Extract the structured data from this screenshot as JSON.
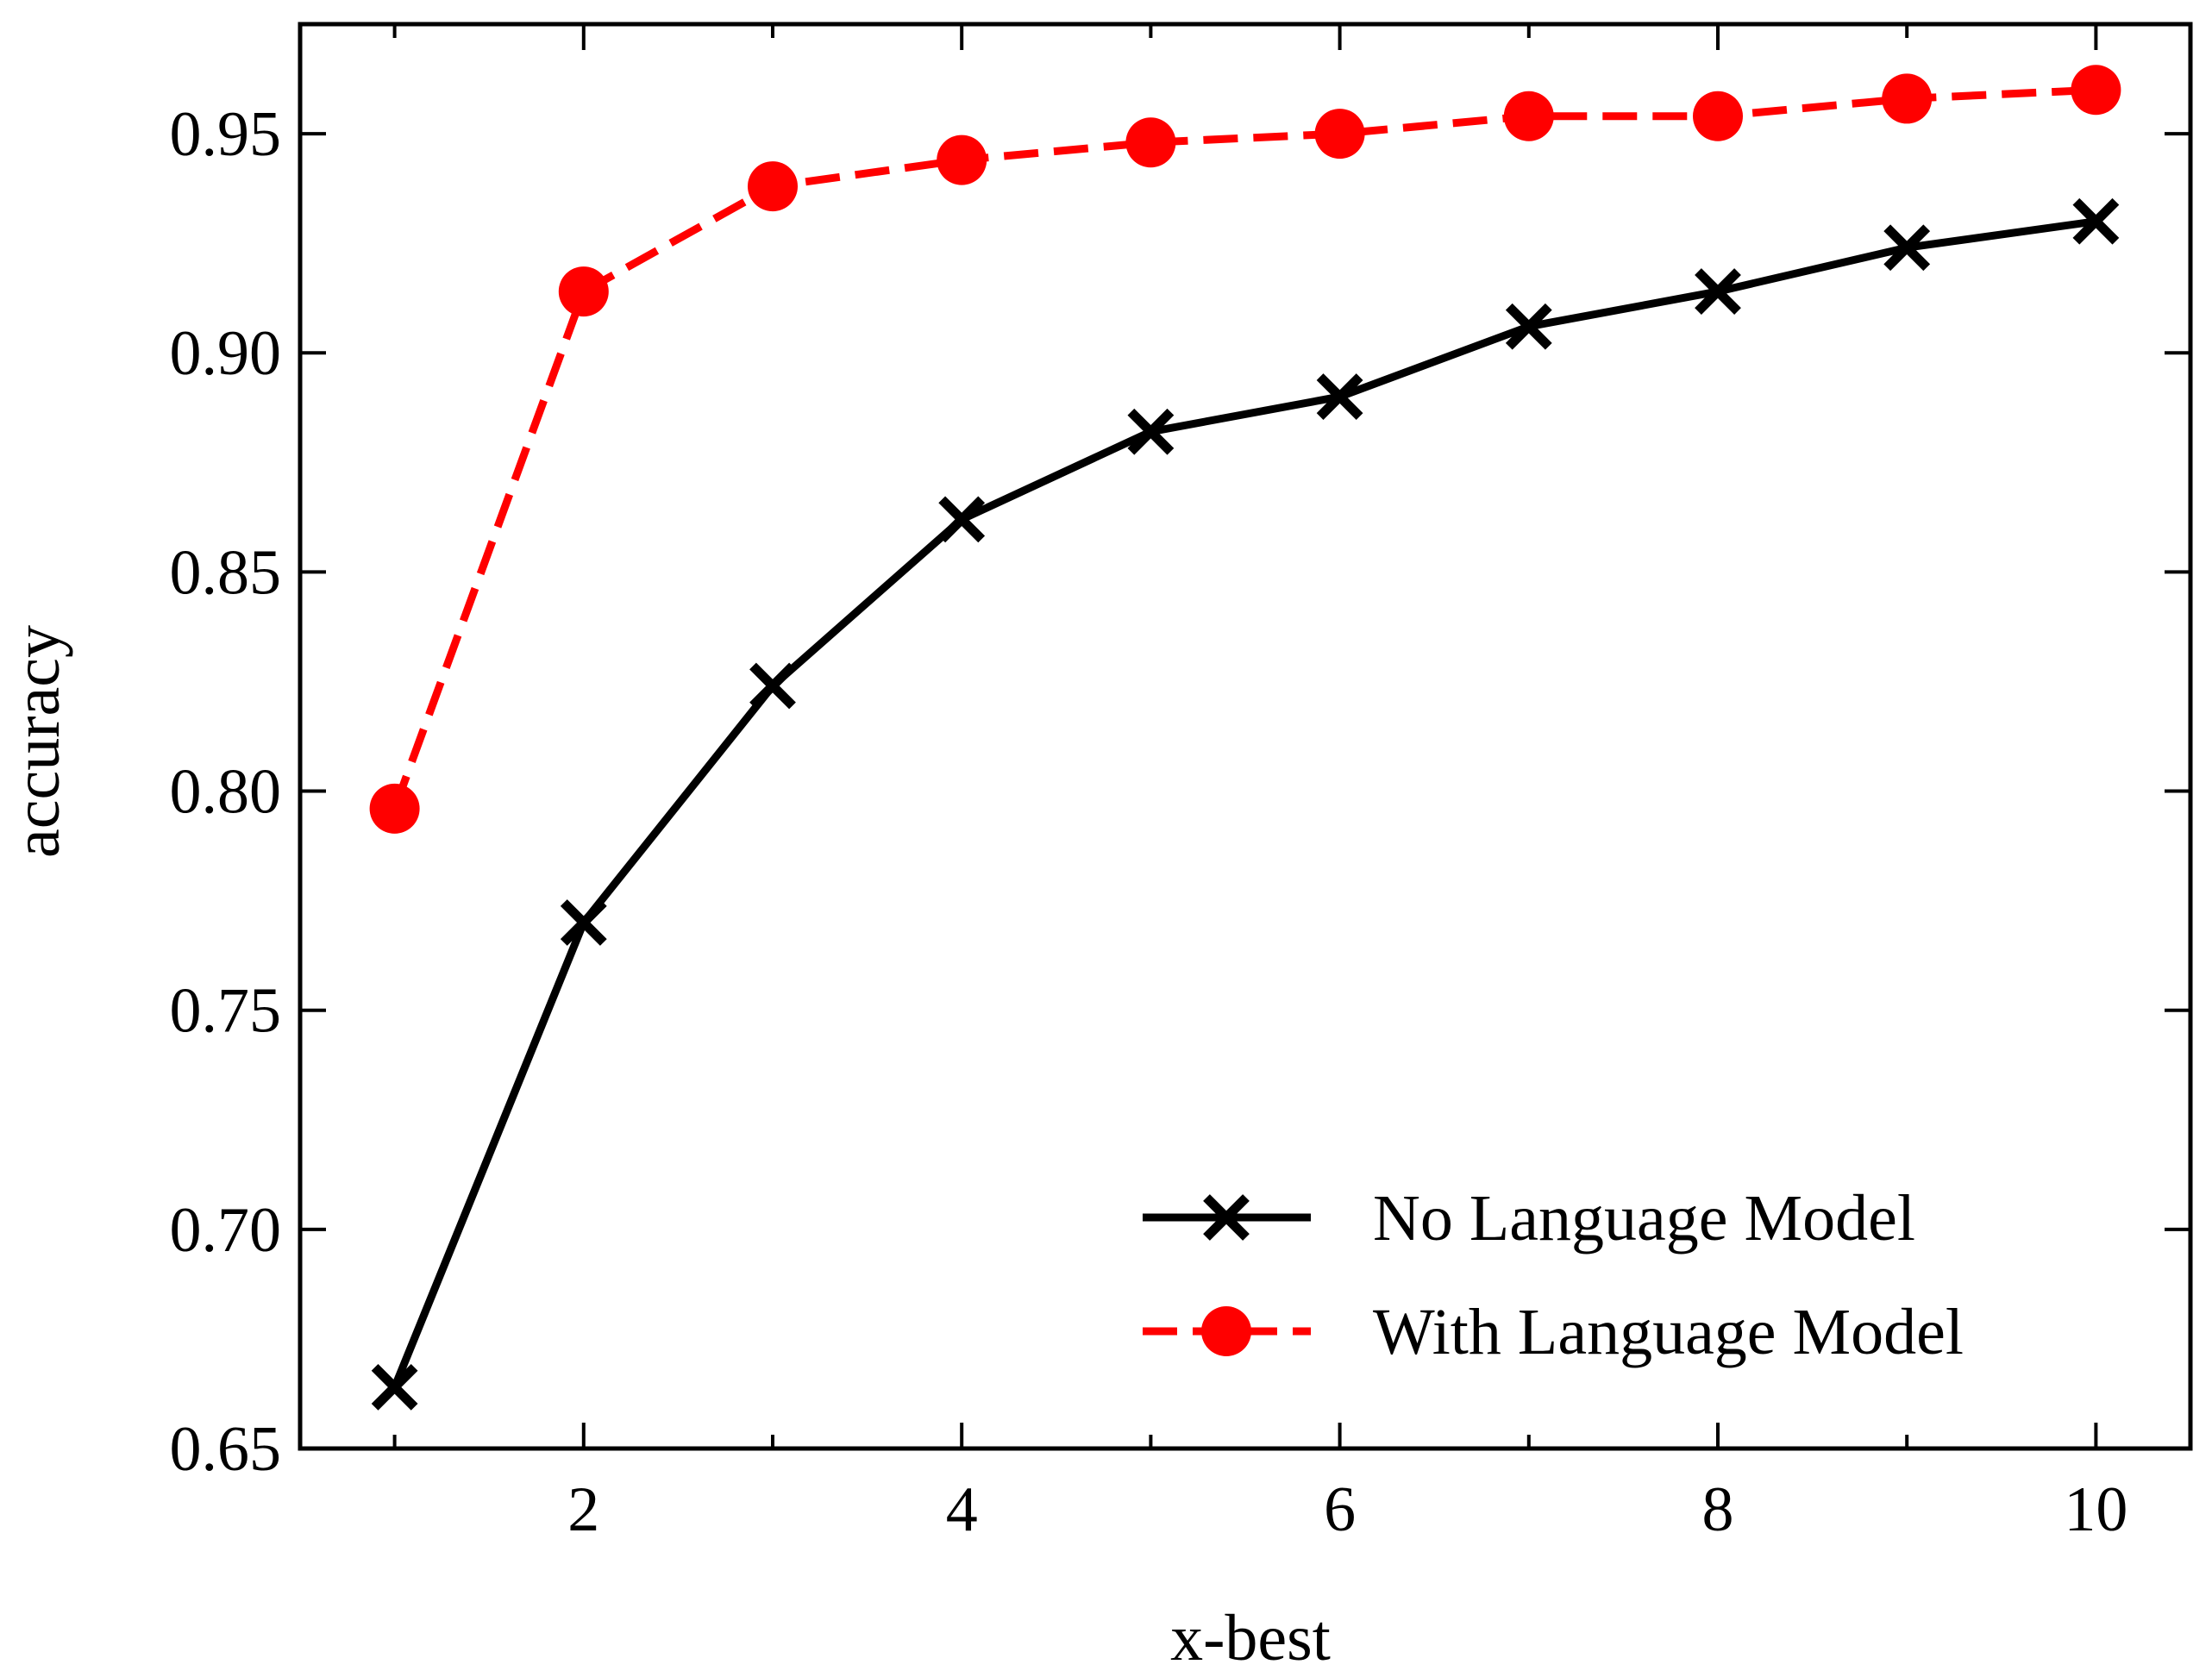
{
  "chart_data": {
    "type": "line",
    "title": "",
    "xlabel": "x-best",
    "ylabel": "accuracy",
    "xlim": [
      0.5,
      10.5
    ],
    "ylim": [
      0.65,
      0.975
    ],
    "x_major_ticks": [
      2,
      4,
      6,
      8,
      10
    ],
    "x_tick_labels": [
      "2",
      "4",
      "6",
      "8",
      "10"
    ],
    "x_minor_ticks": [
      1,
      3,
      5,
      7,
      9
    ],
    "y_major_ticks": [
      0.65,
      0.7,
      0.75,
      0.8,
      0.85,
      0.9,
      0.95
    ],
    "y_tick_labels": [
      "0.65",
      "0.70",
      "0.75",
      "0.80",
      "0.85",
      "0.90",
      "0.95"
    ],
    "grid": false,
    "legend_position": "lower-right",
    "x": [
      1,
      2,
      3,
      4,
      5,
      6,
      7,
      8,
      9,
      10
    ],
    "series": [
      {
        "name": "No Language Model",
        "values": [
          0.664,
          0.77,
          0.824,
          0.862,
          0.882,
          0.89,
          0.906,
          0.914,
          0.924,
          0.93
        ],
        "color": "#000000",
        "line_style": "solid",
        "marker": "x"
      },
      {
        "name": "With Language Model",
        "values": [
          0.796,
          0.914,
          0.938,
          0.944,
          0.948,
          0.95,
          0.954,
          0.954,
          0.958,
          0.96
        ],
        "color": "#ff0000",
        "line_style": "dashed",
        "marker": "circle"
      }
    ]
  }
}
